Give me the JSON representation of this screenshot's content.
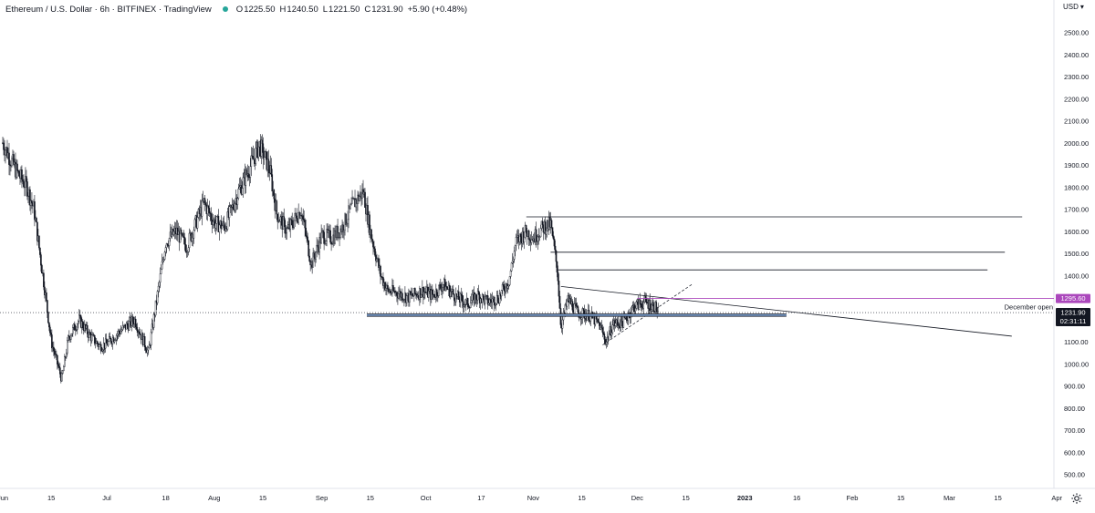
{
  "header": {
    "symbol_title": "Ethereum / U.S. Dollar · 6h · BITFINEX · TradingView",
    "ohlc": [
      {
        "k": "O",
        "v": "1225.50"
      },
      {
        "k": "H",
        "v": "1240.50"
      },
      {
        "k": "L",
        "v": "1221.50"
      },
      {
        "k": "C",
        "v": "1231.90"
      },
      {
        "k": "",
        "v": "+5.90 (+0.48%)"
      }
    ]
  },
  "currency_label": "USD",
  "colors": {
    "up": "#26a69a",
    "down": "#131722",
    "accent_purple": "#ab47bc",
    "price_tag": "#131722"
  },
  "chart_data": {
    "type": "candlestick",
    "ylim": [
      450,
      2650
    ],
    "y_ticks": [
      500,
      600,
      700,
      800,
      900,
      1000,
      1100,
      1200,
      1300,
      1400,
      1500,
      1600,
      1700,
      1800,
      1900,
      2000,
      2100,
      2200,
      2300,
      2400,
      2500
    ],
    "x_ticks": [
      "Jun",
      "15",
      "Jul",
      "18",
      "Aug",
      "15",
      "Sep",
      "15",
      "Oct",
      "17",
      "Nov",
      "15",
      "Dec",
      "15",
      "2023",
      "16",
      "Feb",
      "15",
      "Mar",
      "15",
      "Apr"
    ],
    "price_path": [
      [
        "2022-06-01",
        2000
      ],
      [
        "2022-06-05",
        1870
      ],
      [
        "2022-06-08",
        1800
      ],
      [
        "2022-06-10",
        1700
      ],
      [
        "2022-06-13",
        1350
      ],
      [
        "2022-06-15",
        1100
      ],
      [
        "2022-06-18",
        930
      ],
      [
        "2022-06-20",
        1120
      ],
      [
        "2022-06-23",
        1200
      ],
      [
        "2022-06-26",
        1130
      ],
      [
        "2022-06-29",
        1080
      ],
      [
        "2022-07-01",
        1090
      ],
      [
        "2022-07-05",
        1150
      ],
      [
        "2022-07-09",
        1200
      ],
      [
        "2022-07-13",
        1050
      ],
      [
        "2022-07-16",
        1350
      ],
      [
        "2022-07-18",
        1550
      ],
      [
        "2022-07-21",
        1600
      ],
      [
        "2022-07-24",
        1530
      ],
      [
        "2022-07-27",
        1650
      ],
      [
        "2022-07-29",
        1730
      ],
      [
        "2022-08-01",
        1640
      ],
      [
        "2022-08-04",
        1620
      ],
      [
        "2022-08-08",
        1780
      ],
      [
        "2022-08-11",
        1880
      ],
      [
        "2022-08-14",
        1990
      ],
      [
        "2022-08-17",
        1880
      ],
      [
        "2022-08-19",
        1680
      ],
      [
        "2022-08-22",
        1600
      ],
      [
        "2022-08-26",
        1700
      ],
      [
        "2022-08-29",
        1450
      ],
      [
        "2022-09-01",
        1580
      ],
      [
        "2022-09-04",
        1570
      ],
      [
        "2022-09-07",
        1620
      ],
      [
        "2022-09-10",
        1720
      ],
      [
        "2022-09-13",
        1780
      ],
      [
        "2022-09-15",
        1600
      ],
      [
        "2022-09-18",
        1400
      ],
      [
        "2022-09-20",
        1330
      ],
      [
        "2022-09-23",
        1320
      ],
      [
        "2022-09-26",
        1300
      ],
      [
        "2022-09-30",
        1330
      ],
      [
        "2022-10-03",
        1310
      ],
      [
        "2022-10-06",
        1360
      ],
      [
        "2022-10-10",
        1300
      ],
      [
        "2022-10-13",
        1270
      ],
      [
        "2022-10-16",
        1310
      ],
      [
        "2022-10-19",
        1280
      ],
      [
        "2022-10-22",
        1300
      ],
      [
        "2022-10-25",
        1380
      ],
      [
        "2022-10-27",
        1550
      ],
      [
        "2022-10-30",
        1600
      ],
      [
        "2022-11-01",
        1570
      ],
      [
        "2022-11-04",
        1620
      ],
      [
        "2022-11-06",
        1630
      ],
      [
        "2022-11-08",
        1420
      ],
      [
        "2022-11-09",
        1170
      ],
      [
        "2022-11-11",
        1290
      ],
      [
        "2022-11-14",
        1230
      ],
      [
        "2022-11-17",
        1220
      ],
      [
        "2022-11-20",
        1180
      ],
      [
        "2022-11-22",
        1100
      ],
      [
        "2022-11-24",
        1180
      ],
      [
        "2022-11-27",
        1190
      ],
      [
        "2022-11-30",
        1260
      ],
      [
        "2022-12-03",
        1280
      ],
      [
        "2022-12-06",
        1260
      ],
      [
        "2022-12-07",
        1232
      ]
    ],
    "annotations": [
      {
        "label": "December open",
        "price": 1295.6,
        "color": "#ab47bc"
      }
    ],
    "price_tags": [
      {
        "price": 1295.6,
        "text": "1295.60",
        "bg": "#ab47bc"
      },
      {
        "price": 1231.9,
        "text": "1231.90",
        "sub": "02:31:11",
        "bg": "#131722"
      }
    ]
  }
}
